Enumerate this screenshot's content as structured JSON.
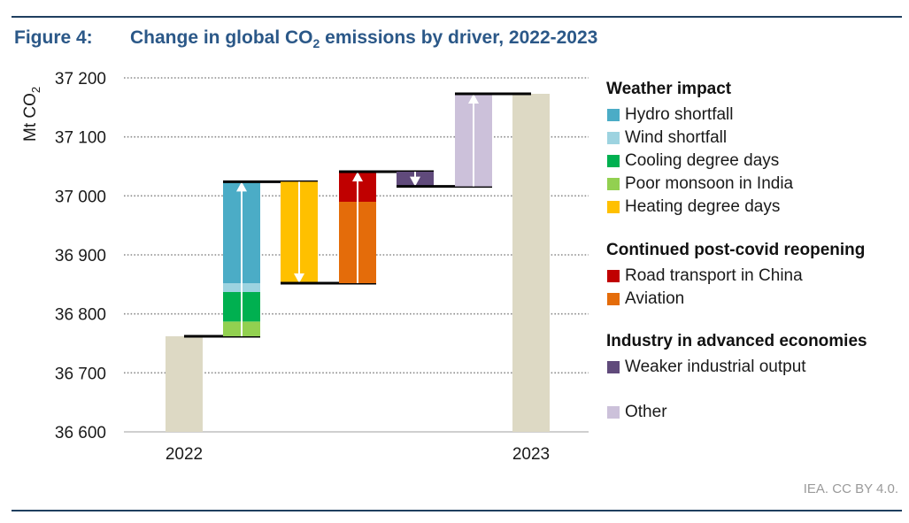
{
  "figure": {
    "label": "Figure 4:",
    "title_main": "Change in global CO",
    "title_sub": "2",
    "title_rest": " emissions by driver, 2022-2023",
    "credit": "IEA. CC BY 4.0."
  },
  "legend": {
    "groups": [
      {
        "title": "Weather impact",
        "items": [
          {
            "label": "Hydro shortfall",
            "color": "#4bacc6"
          },
          {
            "label": "Wind shortfall",
            "color": "#9dd3e0"
          },
          {
            "label": "Cooling degree days",
            "color": "#00b050"
          },
          {
            "label": "Poor monsoon in India",
            "color": "#92d050"
          },
          {
            "label": "Heating degree days",
            "color": "#ffc000"
          }
        ]
      },
      {
        "title": "Continued post-covid reopening",
        "items": [
          {
            "label": "Road transport in China",
            "color": "#c00000"
          },
          {
            "label": "Aviation",
            "color": "#e46c0a"
          }
        ]
      },
      {
        "title": "Industry in advanced economies",
        "items": [
          {
            "label": "Weaker industrial output",
            "color": "#604a7b"
          }
        ]
      },
      {
        "title": "",
        "items": [
          {
            "label": "Other",
            "color": "#ccc1da"
          }
        ]
      }
    ]
  },
  "chart_data": {
    "type": "waterfall",
    "ylabel": "Mt CO",
    "ylabel_sub": "2",
    "ylim": [
      36600,
      37200
    ],
    "yticks": [
      36600,
      36700,
      36800,
      36900,
      37000,
      37100,
      37200
    ],
    "ytick_labels": [
      "36 600",
      "36 700",
      "36 800",
      "36 900",
      "37 000",
      "37 100",
      "37 200"
    ],
    "x_labels": [
      "2022",
      "2023"
    ],
    "totals": [
      {
        "label": "2022",
        "value": 36762,
        "color": "#ddd9c4"
      },
      {
        "label": "2023",
        "value": 37173,
        "color": "#ddd9c4"
      }
    ],
    "steps": [
      {
        "driver": "Weather impact",
        "start": 36762,
        "end": 37024,
        "segments": [
          {
            "name": "Poor monsoon in India",
            "value": 25,
            "color": "#92d050"
          },
          {
            "name": "Cooling degree days",
            "value": 50,
            "color": "#00b050"
          },
          {
            "name": "Wind shortfall",
            "value": 15,
            "color": "#9dd3e0"
          },
          {
            "name": "Hydro shortfall",
            "value": 172,
            "color": "#4bacc6"
          }
        ]
      },
      {
        "driver": "Heating degree days",
        "start": 37024,
        "end": 36852,
        "segments": [
          {
            "name": "Heating degree days",
            "value": -172,
            "color": "#ffc000"
          }
        ]
      },
      {
        "driver": "Continued post-covid reopening",
        "start": 36852,
        "end": 37041,
        "segments": [
          {
            "name": "Aviation",
            "value": 138,
            "color": "#e46c0a"
          },
          {
            "name": "Road transport in China",
            "value": 51,
            "color": "#c00000"
          }
        ]
      },
      {
        "driver": "Weaker industrial output",
        "start": 37041,
        "end": 37016,
        "segments": [
          {
            "name": "Weaker industrial output",
            "value": -25,
            "color": "#604a7b"
          }
        ]
      },
      {
        "driver": "Other",
        "start": 37016,
        "end": 37173,
        "segments": [
          {
            "name": "Other",
            "value": 157,
            "color": "#ccc1da"
          }
        ]
      }
    ]
  }
}
